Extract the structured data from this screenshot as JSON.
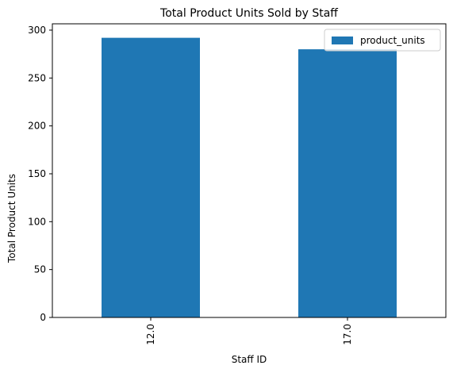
{
  "chart_data": {
    "type": "bar",
    "title": "Total Product Units Sold by Staff",
    "xlabel": "Staff ID",
    "ylabel": "Total Product Units",
    "categories": [
      "12.0",
      "17.0"
    ],
    "series": [
      {
        "name": "product_units",
        "values": [
          292,
          280
        ],
        "color": "#1f77b4"
      }
    ],
    "ylim": [
      0,
      306.6
    ],
    "yticks": [
      0,
      50,
      100,
      150,
      200,
      250,
      300
    ],
    "grid": false,
    "legend": "top-right",
    "xtick_rotation": 90
  }
}
